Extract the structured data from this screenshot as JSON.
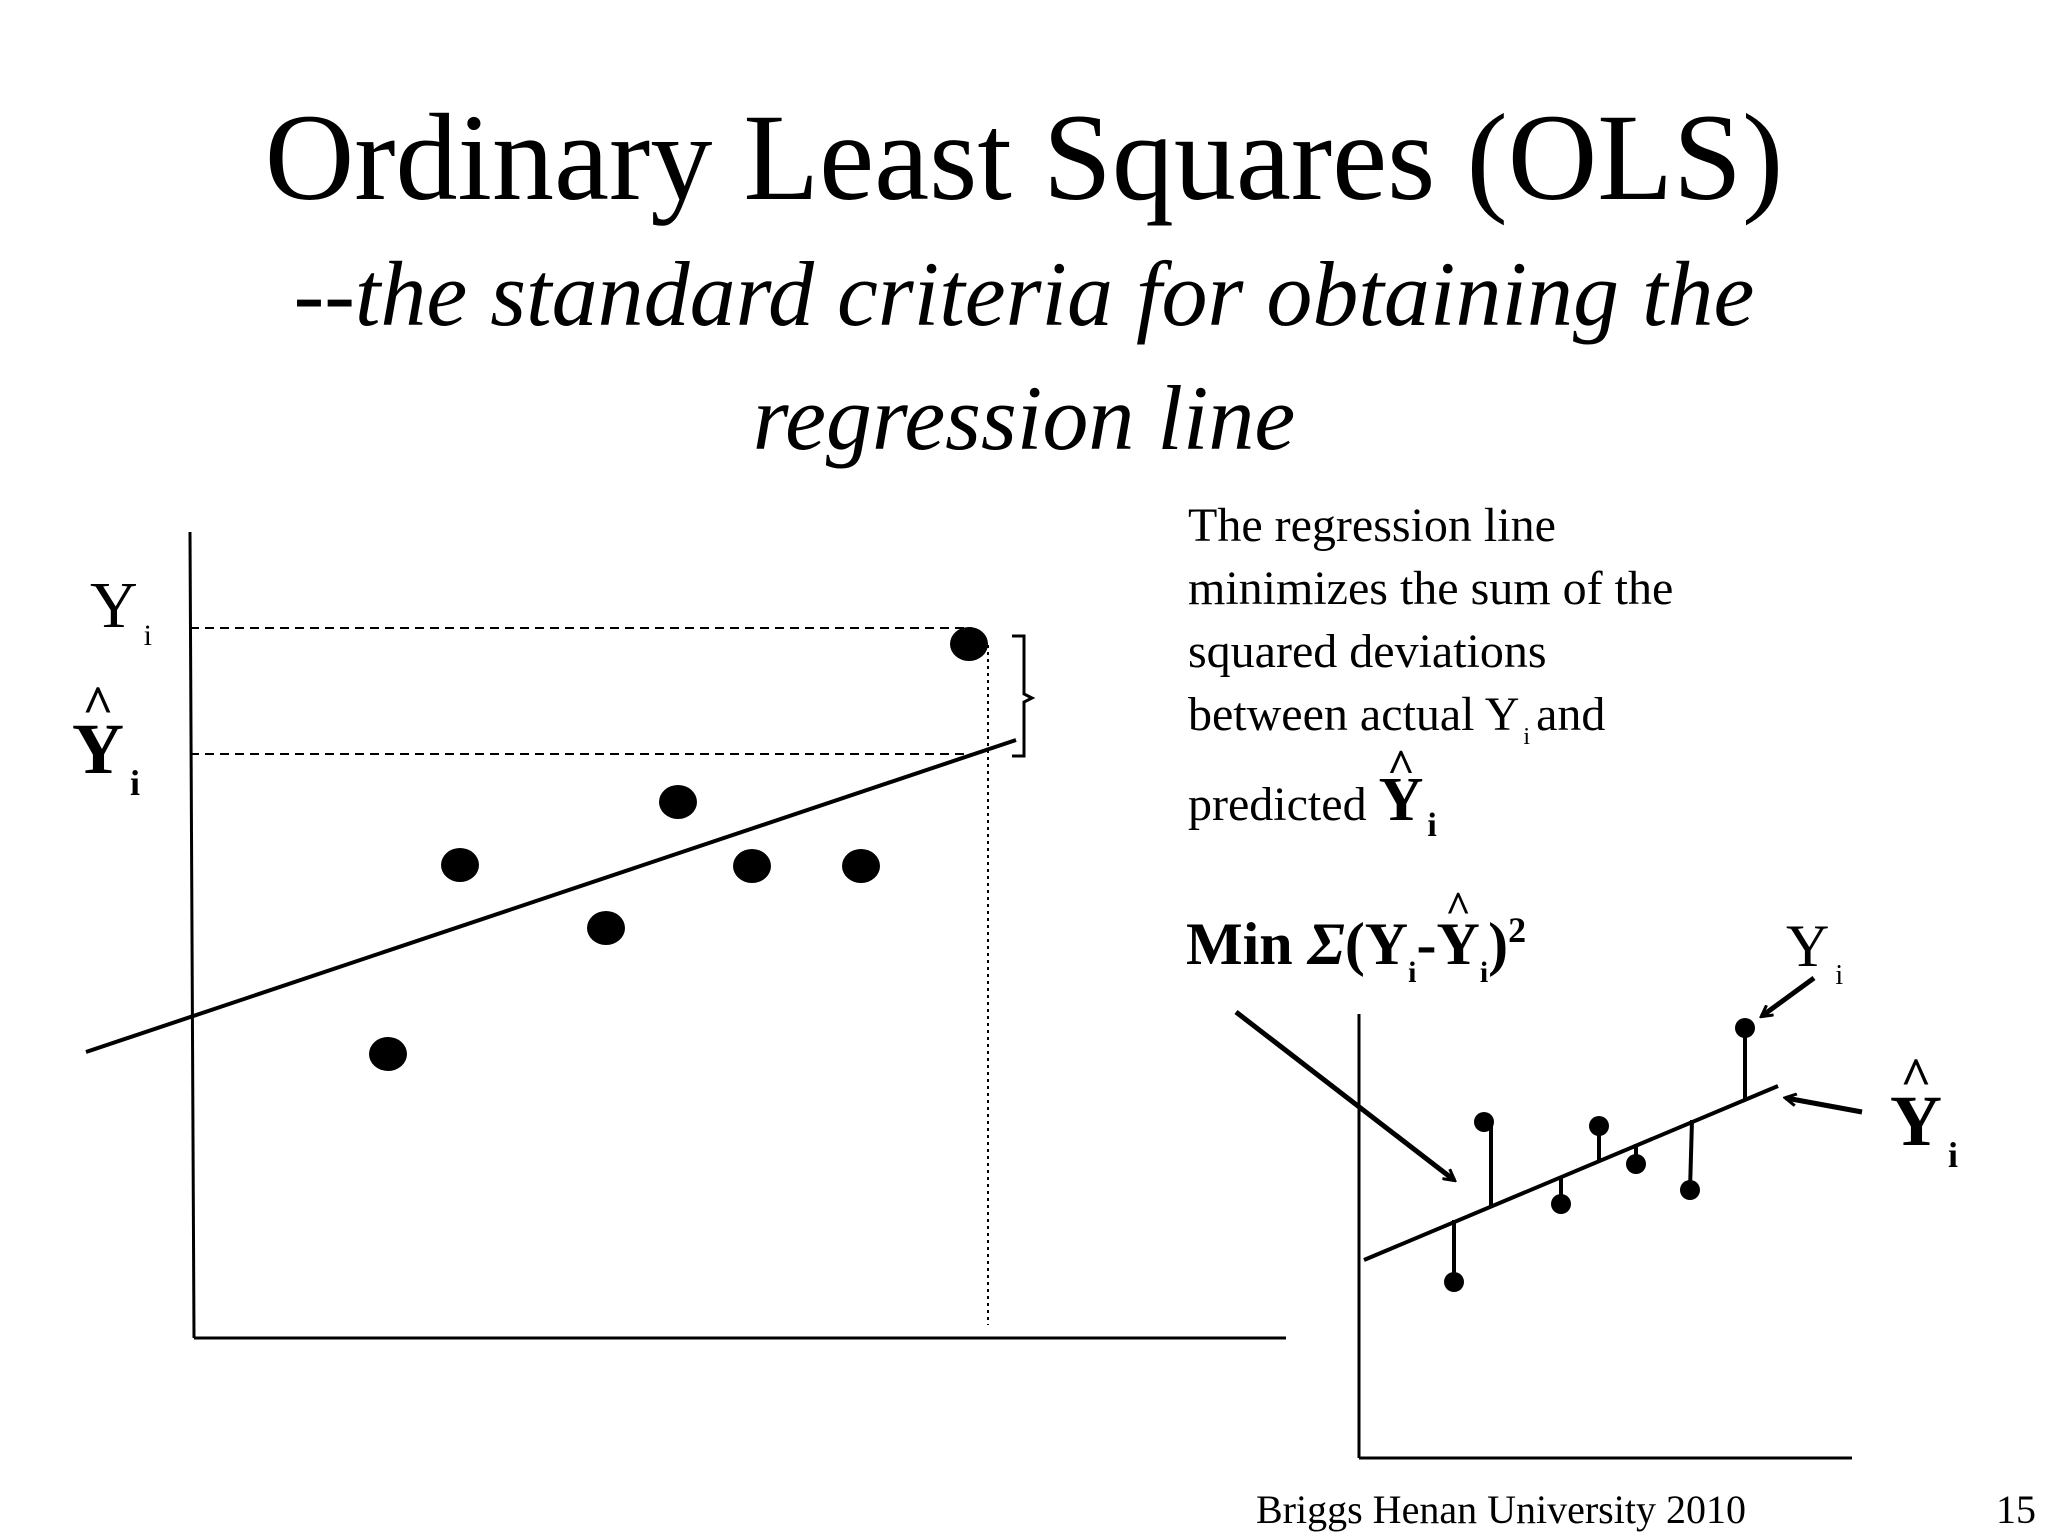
{
  "slide": {
    "title": "Ordinary Least Squares (OLS)",
    "subtitle_line1": "--the standard criteria for obtaining the",
    "subtitle_line2": "regression line",
    "description": {
      "line1": "The regression line",
      "line2": "minimizes the sum of the",
      "line3": "squared deviations",
      "line4_pre": "between actual Y",
      "line4_sub": "i",
      "line4_post": "and",
      "line5": "predicted",
      "yhat": "Y",
      "yhat_sub": "i"
    },
    "formula": {
      "min": "Min",
      "sigma": "Σ",
      "open": "(Y",
      "sub1": "i",
      "minus": "-",
      "yhat": "Y",
      "sub2": "i",
      "close": ")",
      "power": "2"
    },
    "labels": {
      "left_y": "Y",
      "left_y_sub": "i",
      "left_yhat": "Y",
      "left_yhat_sub": "i",
      "right_y": "Y",
      "right_y_sub": "i",
      "right_yhat": "Y",
      "right_yhat_sub": "i"
    },
    "footer": "Briggs  Henan University 2010",
    "page_number": "15"
  }
}
